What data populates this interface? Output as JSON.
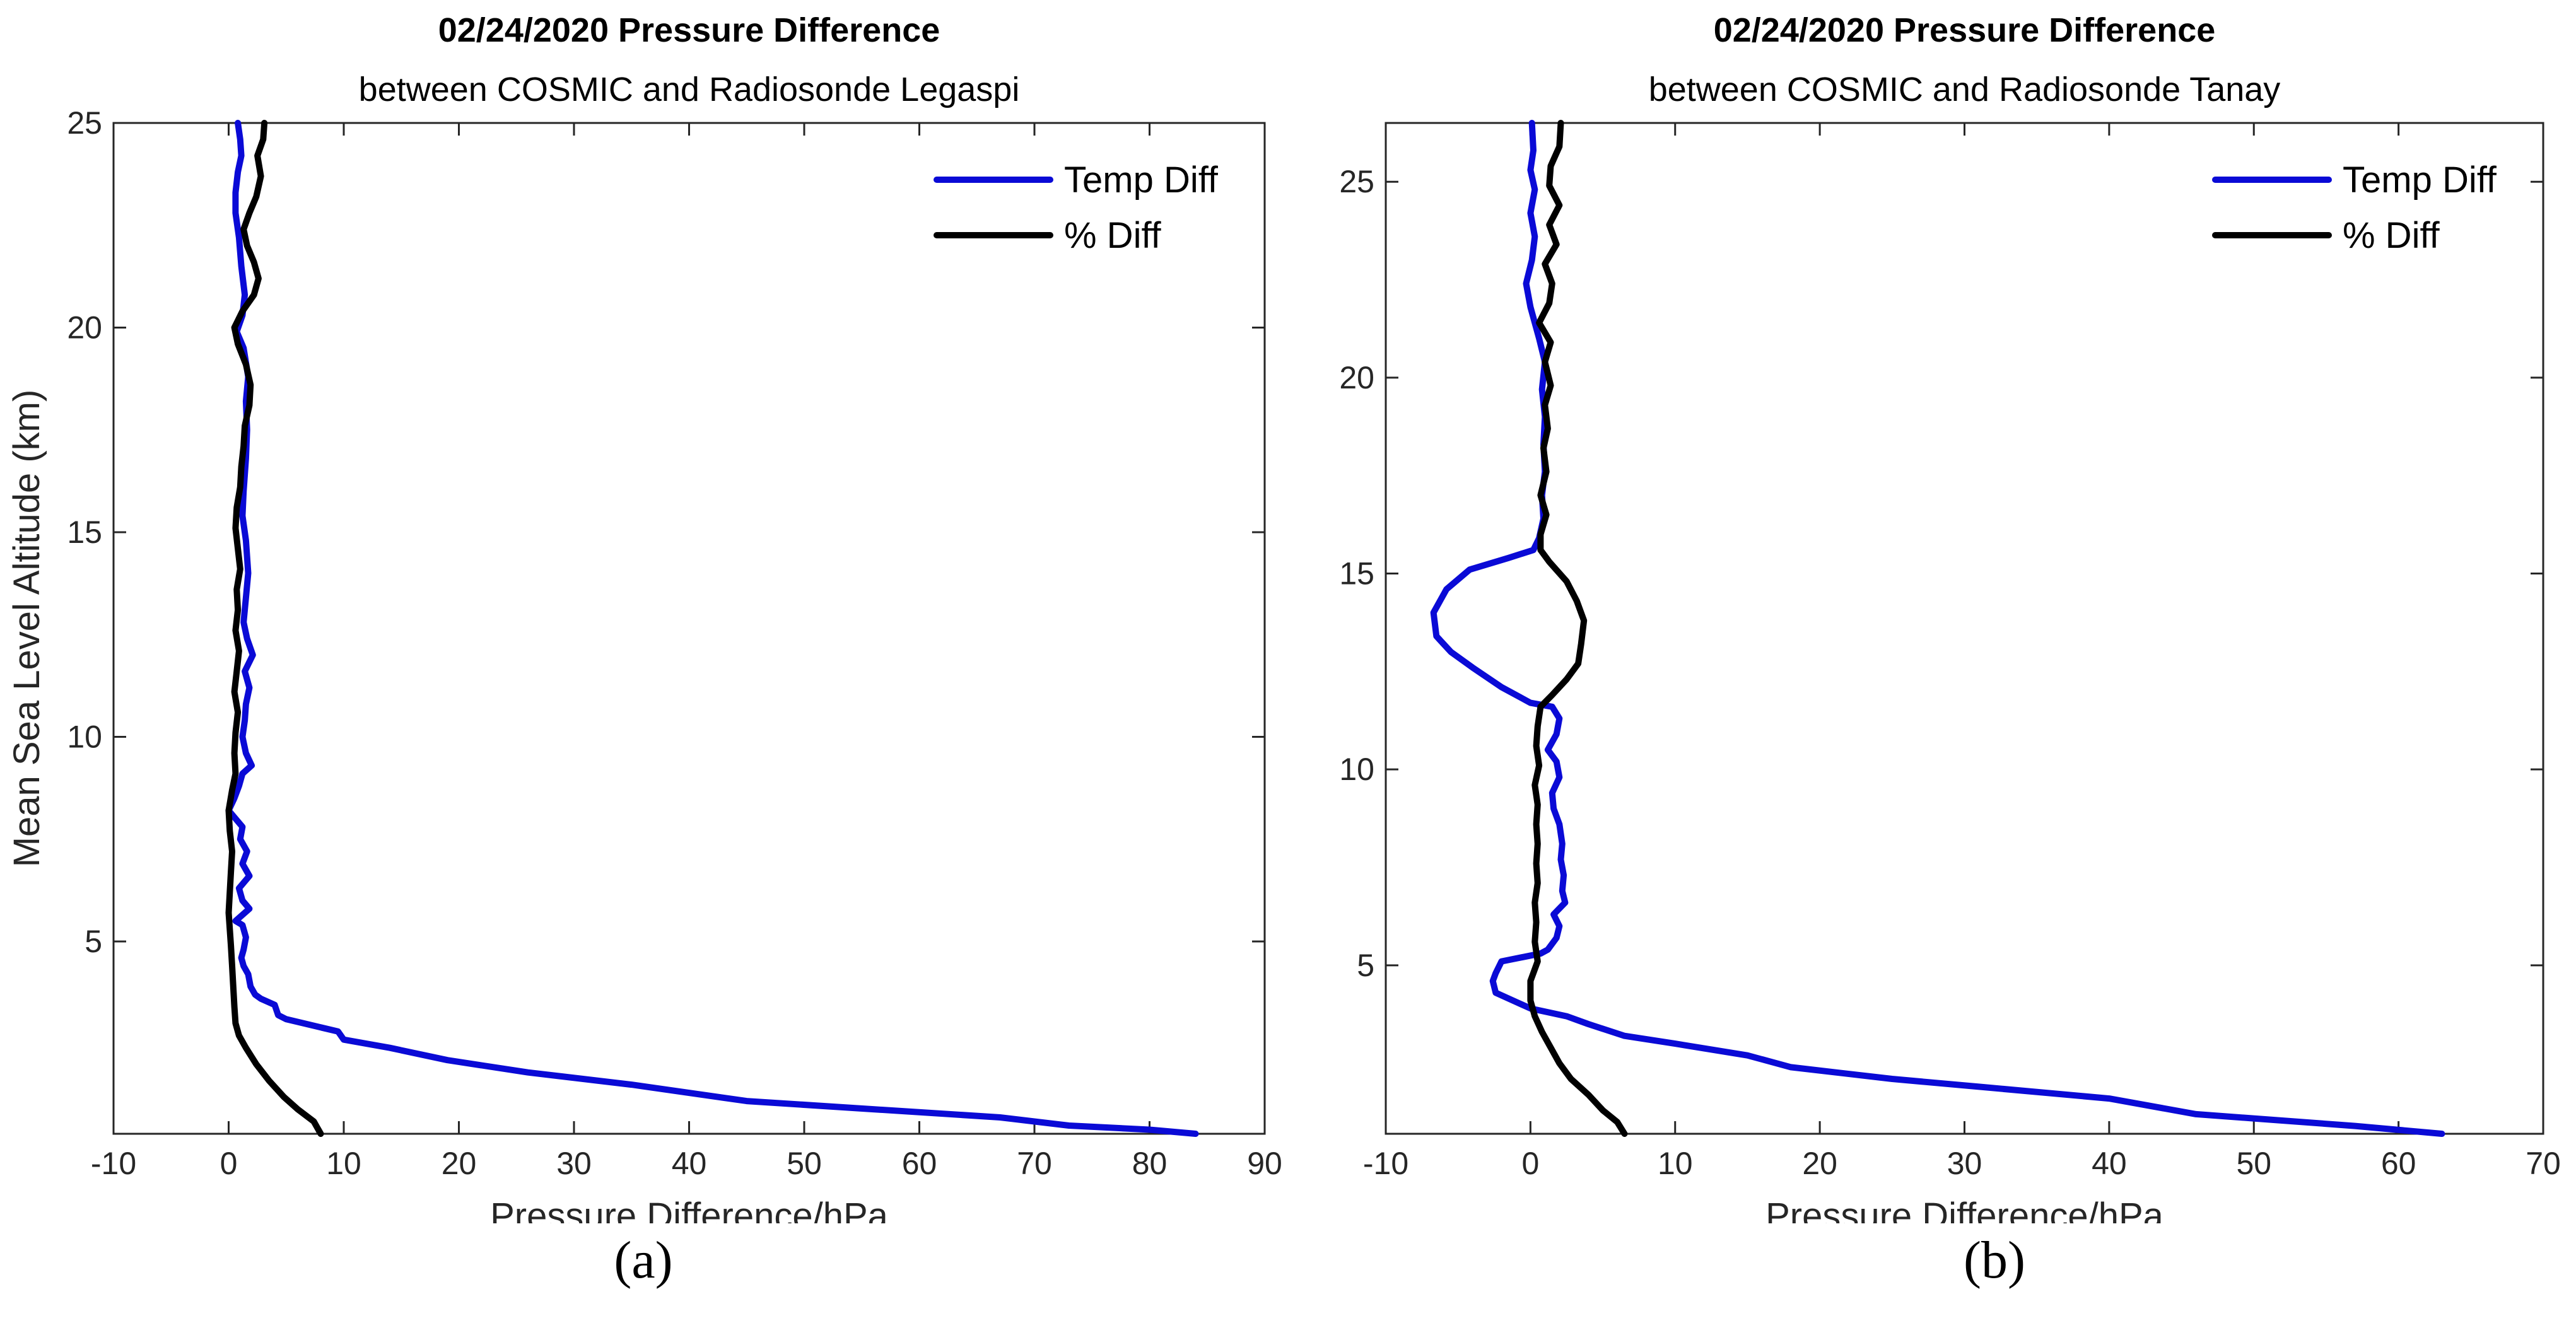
{
  "chart_data": [
    {
      "type": "line",
      "panel_label": "(a)",
      "title": "02/24/2020 Pressure Difference",
      "subtitle": "between COSMIC and Radiosonde Legaspi",
      "xlabel": "Pressure Difference/hPa",
      "ylabel": "Mean Sea Level Altitude (km)",
      "xlim": [
        -10,
        90
      ],
      "ylim": [
        0.3,
        25
      ],
      "xticks": [
        -10,
        0,
        10,
        20,
        30,
        40,
        50,
        60,
        70,
        80,
        90
      ],
      "yticks": [
        5,
        10,
        15,
        20,
        25
      ],
      "grid": false,
      "legend_position": "top-right",
      "colors": {
        "temp_diff": "#0a0ad6",
        "pct_diff": "#000000"
      },
      "series": [
        {
          "name": "Temp Diff",
          "points": [
            [
              84,
              0.3
            ],
            [
              80,
              0.4
            ],
            [
              73,
              0.5
            ],
            [
              67,
              0.7
            ],
            [
              56,
              0.9
            ],
            [
              45,
              1.1
            ],
            [
              35,
              1.5
            ],
            [
              26,
              1.8
            ],
            [
              19,
              2.1
            ],
            [
              14,
              2.4
            ],
            [
              10,
              2.6
            ],
            [
              9.5,
              2.8
            ],
            [
              8,
              2.9
            ],
            [
              5,
              3.1
            ],
            [
              4.3,
              3.2
            ],
            [
              4,
              3.45
            ],
            [
              2.8,
              3.6
            ],
            [
              2.3,
              3.7
            ],
            [
              1.9,
              3.9
            ],
            [
              1.7,
              4.2
            ],
            [
              1.3,
              4.4
            ],
            [
              1.1,
              4.6
            ],
            [
              1.3,
              4.8
            ],
            [
              1.5,
              5.1
            ],
            [
              1.2,
              5.4
            ],
            [
              0.6,
              5.5
            ],
            [
              1.8,
              5.8
            ],
            [
              1.2,
              6.0
            ],
            [
              0.9,
              6.3
            ],
            [
              1.8,
              6.6
            ],
            [
              1.2,
              6.9
            ],
            [
              1.6,
              7.2
            ],
            [
              1.0,
              7.5
            ],
            [
              1.2,
              7.8
            ],
            [
              0.0,
              8.2
            ],
            [
              0.5,
              8.5
            ],
            [
              0.9,
              8.8
            ],
            [
              1.2,
              9.1
            ],
            [
              2.0,
              9.3
            ],
            [
              1.5,
              9.6
            ],
            [
              1.2,
              10.0
            ],
            [
              1.4,
              10.4
            ],
            [
              1.5,
              10.8
            ],
            [
              1.8,
              11.2
            ],
            [
              1.4,
              11.6
            ],
            [
              2.1,
              12.0
            ],
            [
              1.6,
              12.4
            ],
            [
              1.3,
              12.8
            ],
            [
              1.5,
              13.4
            ],
            [
              1.7,
              14.0
            ],
            [
              1.5,
              14.8
            ],
            [
              1.2,
              15.4
            ],
            [
              1.3,
              16.0
            ],
            [
              1.5,
              16.8
            ],
            [
              1.6,
              17.5
            ],
            [
              1.5,
              18.2
            ],
            [
              1.7,
              18.8
            ],
            [
              1.3,
              19.5
            ],
            [
              0.7,
              19.9
            ],
            [
              1.2,
              20.3
            ],
            [
              1.4,
              20.8
            ],
            [
              1.1,
              21.5
            ],
            [
              0.9,
              22.2
            ],
            [
              0.6,
              22.8
            ],
            [
              0.6,
              23.3
            ],
            [
              0.8,
              23.8
            ],
            [
              1.1,
              24.2
            ],
            [
              1.0,
              24.6
            ],
            [
              0.8,
              25.0
            ]
          ]
        },
        {
          "name": "% Diff",
          "points": [
            [
              8,
              0.3
            ],
            [
              7.4,
              0.6
            ],
            [
              6,
              0.9
            ],
            [
              4.8,
              1.2
            ],
            [
              3.5,
              1.6
            ],
            [
              2.4,
              2.0
            ],
            [
              1.5,
              2.4
            ],
            [
              0.9,
              2.7
            ],
            [
              0.6,
              3.0
            ],
            [
              0.5,
              3.4
            ],
            [
              0.4,
              3.9
            ],
            [
              0.3,
              4.4
            ],
            [
              0.2,
              4.9
            ],
            [
              0.1,
              5.3
            ],
            [
              0.0,
              5.7
            ],
            [
              0.1,
              6.2
            ],
            [
              0.2,
              6.7
            ],
            [
              0.3,
              7.2
            ],
            [
              0.1,
              7.7
            ],
            [
              0.0,
              8.2
            ],
            [
              0.3,
              8.7
            ],
            [
              0.6,
              9.1
            ],
            [
              0.5,
              9.6
            ],
            [
              0.6,
              10.1
            ],
            [
              0.8,
              10.6
            ],
            [
              0.5,
              11.1
            ],
            [
              0.7,
              11.6
            ],
            [
              0.9,
              12.1
            ],
            [
              0.6,
              12.6
            ],
            [
              0.8,
              13.1
            ],
            [
              0.7,
              13.6
            ],
            [
              1.0,
              14.1
            ],
            [
              0.8,
              14.6
            ],
            [
              0.6,
              15.1
            ],
            [
              0.7,
              15.6
            ],
            [
              1.0,
              16.1
            ],
            [
              1.1,
              16.6
            ],
            [
              1.3,
              17.1
            ],
            [
              1.4,
              17.6
            ],
            [
              1.8,
              18.1
            ],
            [
              1.9,
              18.6
            ],
            [
              1.5,
              19.1
            ],
            [
              0.8,
              19.6
            ],
            [
              0.5,
              20.0
            ],
            [
              1.2,
              20.4
            ],
            [
              2.2,
              20.8
            ],
            [
              2.6,
              21.2
            ],
            [
              2.2,
              21.6
            ],
            [
              1.6,
              22.0
            ],
            [
              1.3,
              22.4
            ],
            [
              1.8,
              22.8
            ],
            [
              2.4,
              23.2
            ],
            [
              2.8,
              23.7
            ],
            [
              2.5,
              24.2
            ],
            [
              3.0,
              24.6
            ],
            [
              3.1,
              25.0
            ]
          ]
        }
      ]
    },
    {
      "type": "line",
      "panel_label": "(b)",
      "title": "02/24/2020 Pressure Difference",
      "subtitle": "between COSMIC and Radiosonde Tanay",
      "xlabel": "Pressure Difference/hPa",
      "ylabel": "",
      "xlim": [
        -10,
        70
      ],
      "ylim": [
        0.7,
        26.5
      ],
      "xticks": [
        -10,
        0,
        10,
        20,
        30,
        40,
        50,
        60,
        70
      ],
      "yticks": [
        5,
        10,
        15,
        20,
        25
      ],
      "grid": false,
      "legend_position": "top-right",
      "colors": {
        "temp_diff": "#0a0ad6",
        "pct_diff": "#000000"
      },
      "series": [
        {
          "name": "Temp Diff",
          "points": [
            [
              63,
              0.7
            ],
            [
              57,
              0.9
            ],
            [
              46,
              1.2
            ],
            [
              40,
              1.6
            ],
            [
              31,
              1.9
            ],
            [
              25,
              2.1
            ],
            [
              18,
              2.4
            ],
            [
              15,
              2.7
            ],
            [
              10,
              3.0
            ],
            [
              6.5,
              3.2
            ],
            [
              4,
              3.5
            ],
            [
              2.5,
              3.7
            ],
            [
              0,
              3.9
            ],
            [
              -2.4,
              4.3
            ],
            [
              -2.6,
              4.6
            ],
            [
              -2.4,
              4.8
            ],
            [
              -2.0,
              5.1
            ],
            [
              0.7,
              5.3
            ],
            [
              1.2,
              5.4
            ],
            [
              1.8,
              5.7
            ],
            [
              2.0,
              6.0
            ],
            [
              1.6,
              6.3
            ],
            [
              2.4,
              6.6
            ],
            [
              2.2,
              6.9
            ],
            [
              2.3,
              7.3
            ],
            [
              2.1,
              7.7
            ],
            [
              2.2,
              8.1
            ],
            [
              2.0,
              8.6
            ],
            [
              1.6,
              9.0
            ],
            [
              1.5,
              9.4
            ],
            [
              2.0,
              9.8
            ],
            [
              1.8,
              10.2
            ],
            [
              1.2,
              10.5
            ],
            [
              1.8,
              10.9
            ],
            [
              2.0,
              11.3
            ],
            [
              1.5,
              11.6
            ],
            [
              0.0,
              11.7
            ],
            [
              -2.0,
              12.1
            ],
            [
              -4.0,
              12.6
            ],
            [
              -5.5,
              13.0
            ],
            [
              -6.5,
              13.4
            ],
            [
              -6.7,
              14.0
            ],
            [
              -5.8,
              14.6
            ],
            [
              -4.2,
              15.1
            ],
            [
              -1.5,
              15.4
            ],
            [
              0.2,
              15.6
            ],
            [
              0.6,
              15.9
            ],
            [
              0.9,
              16.4
            ],
            [
              0.8,
              17.0
            ],
            [
              1.0,
              17.6
            ],
            [
              0.9,
              18.3
            ],
            [
              1.0,
              19.0
            ],
            [
              0.8,
              19.7
            ],
            [
              1.0,
              20.4
            ],
            [
              0.6,
              21.0
            ],
            [
              0.0,
              21.8
            ],
            [
              -0.3,
              22.4
            ],
            [
              0.1,
              23.0
            ],
            [
              0.3,
              23.6
            ],
            [
              0.0,
              24.2
            ],
            [
              0.3,
              24.8
            ],
            [
              0.0,
              25.3
            ],
            [
              0.2,
              25.8
            ],
            [
              0.1,
              26.5
            ]
          ]
        },
        {
          "name": "% Diff",
          "points": [
            [
              6.5,
              0.7
            ],
            [
              6.0,
              1.0
            ],
            [
              5.0,
              1.3
            ],
            [
              4.0,
              1.7
            ],
            [
              2.8,
              2.1
            ],
            [
              2.0,
              2.5
            ],
            [
              1.4,
              2.9
            ],
            [
              0.8,
              3.3
            ],
            [
              0.3,
              3.7
            ],
            [
              0.0,
              4.1
            ],
            [
              0.0,
              4.6
            ],
            [
              0.5,
              5.1
            ],
            [
              0.3,
              5.6
            ],
            [
              0.4,
              6.1
            ],
            [
              0.3,
              6.6
            ],
            [
              0.5,
              7.1
            ],
            [
              0.4,
              7.6
            ],
            [
              0.5,
              8.1
            ],
            [
              0.4,
              8.6
            ],
            [
              0.5,
              9.1
            ],
            [
              0.3,
              9.6
            ],
            [
              0.6,
              10.1
            ],
            [
              0.4,
              10.6
            ],
            [
              0.5,
              11.1
            ],
            [
              0.7,
              11.6
            ],
            [
              1.5,
              11.9
            ],
            [
              2.5,
              12.3
            ],
            [
              3.3,
              12.7
            ],
            [
              3.5,
              13.2
            ],
            [
              3.7,
              13.8
            ],
            [
              3.2,
              14.3
            ],
            [
              2.5,
              14.8
            ],
            [
              1.3,
              15.3
            ],
            [
              0.7,
              15.6
            ],
            [
              0.7,
              16.0
            ],
            [
              1.1,
              16.5
            ],
            [
              0.7,
              17.0
            ],
            [
              1.1,
              17.6
            ],
            [
              0.9,
              18.2
            ],
            [
              1.2,
              18.7
            ],
            [
              1.0,
              19.3
            ],
            [
              1.4,
              19.8
            ],
            [
              1.0,
              20.4
            ],
            [
              1.4,
              20.9
            ],
            [
              0.6,
              21.4
            ],
            [
              1.3,
              21.9
            ],
            [
              1.5,
              22.4
            ],
            [
              1.0,
              22.9
            ],
            [
              1.8,
              23.4
            ],
            [
              1.3,
              23.9
            ],
            [
              2.0,
              24.4
            ],
            [
              1.3,
              24.9
            ],
            [
              1.4,
              25.4
            ],
            [
              2.0,
              25.9
            ],
            [
              2.1,
              26.5
            ]
          ]
        }
      ]
    }
  ]
}
